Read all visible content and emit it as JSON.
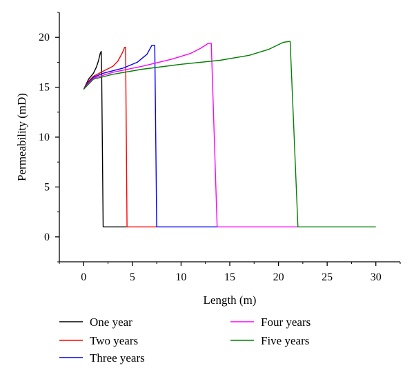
{
  "chart_data": {
    "type": "line",
    "title": "",
    "xlabel": "Length (m)",
    "ylabel": "Permeability (mD)",
    "xlim": [
      -2.5,
      32.5
    ],
    "ylim": [
      -2.5,
      22.5
    ],
    "xticks": [
      0,
      5,
      10,
      15,
      20,
      25,
      30
    ],
    "yticks": [
      0,
      5,
      10,
      15,
      20
    ],
    "grid": false,
    "legend_position": "bottom",
    "series": [
      {
        "name": "One year",
        "color": "#000000",
        "x": [
          0,
          0.5,
          1.0,
          1.3,
          1.5,
          1.7,
          1.8,
          1.85,
          2.0,
          4.4
        ],
        "y": [
          14.8,
          15.8,
          16.4,
          17.0,
          17.6,
          18.4,
          18.6,
          16.0,
          1.0,
          1.0
        ]
      },
      {
        "name": "Two years",
        "color": "#ff0000",
        "x": [
          0,
          0.5,
          1,
          2,
          3,
          3.5,
          4.0,
          4.2,
          4.3,
          4.45,
          7.5
        ],
        "y": [
          14.8,
          15.6,
          16.1,
          16.6,
          17.1,
          17.6,
          18.5,
          19.0,
          19.0,
          1.0,
          1.0
        ]
      },
      {
        "name": "Three years",
        "color": "#0000ff",
        "x": [
          0,
          0.5,
          1,
          2,
          4,
          5.5,
          6.5,
          7.0,
          7.3,
          7.5,
          13.8
        ],
        "y": [
          14.8,
          15.5,
          16.0,
          16.4,
          16.9,
          17.5,
          18.3,
          19.2,
          19.2,
          1.0,
          1.0
        ]
      },
      {
        "name": "Four years",
        "color": "#ff00ff",
        "x": [
          0,
          0.5,
          1,
          3,
          6,
          9,
          11,
          12,
          12.8,
          13.1,
          13.7,
          22.0
        ],
        "y": [
          14.8,
          15.4,
          15.9,
          16.5,
          17.1,
          17.8,
          18.4,
          18.9,
          19.4,
          19.4,
          1.0,
          1.0
        ]
      },
      {
        "name": "Five years",
        "color": "#008000",
        "x": [
          0,
          0.5,
          1,
          3,
          6,
          10,
          14,
          17,
          19,
          20.5,
          21.2,
          22.0,
          30.0
        ],
        "y": [
          14.8,
          15.3,
          15.8,
          16.3,
          16.8,
          17.3,
          17.7,
          18.2,
          18.8,
          19.5,
          19.6,
          1.0,
          1.0
        ]
      }
    ]
  }
}
